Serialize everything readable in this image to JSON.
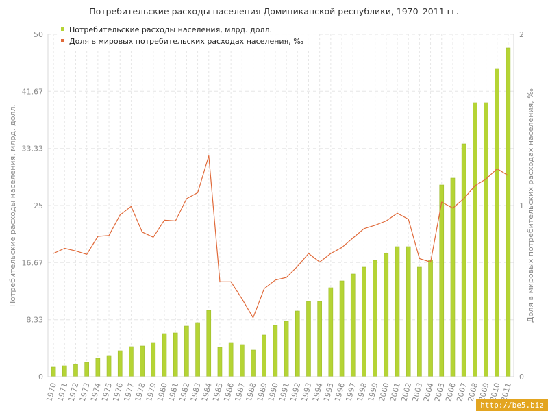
{
  "title": "Потребительские расходы населения Доминиканской республики, 1970–2011 гг.",
  "watermark": "http://be5.biz",
  "colors": {
    "bar": "#b5d435",
    "bar_border": "#9cbb2a",
    "line": "#e06a3a",
    "grid": "#e6e6e6",
    "axis": "#d8d8d8"
  },
  "chart_data": {
    "type": "bar",
    "categories": [
      "1970",
      "1971",
      "1972",
      "1973",
      "1974",
      "1975",
      "1976",
      "1977",
      "1978",
      "1979",
      "1980",
      "1981",
      "1982",
      "1983",
      "1984",
      "1985",
      "1986",
      "1987",
      "1988",
      "1989",
      "1990",
      "1991",
      "1992",
      "1993",
      "1994",
      "1995",
      "1996",
      "1997",
      "1998",
      "1999",
      "2000",
      "2001",
      "2002",
      "2003",
      "2004",
      "2005",
      "2006",
      "2007",
      "2008",
      "2009",
      "2010",
      "2011"
    ],
    "series": [
      {
        "name": "Потребительские расходы населения, млрд. долл.",
        "type": "bar",
        "axis": "left",
        "values": [
          1.4,
          1.6,
          1.8,
          2.1,
          2.7,
          3.1,
          3.8,
          4.4,
          4.5,
          5.0,
          6.3,
          6.4,
          7.4,
          7.9,
          9.7,
          4.3,
          5.0,
          4.7,
          3.9,
          6.1,
          7.5,
          8.1,
          9.6,
          11.0,
          11.0,
          13.0,
          14.0,
          15.0,
          16.0,
          17.0,
          18.0,
          19.0,
          19.0,
          16.0,
          17.0,
          28.0,
          29.0,
          34.0,
          40.0,
          40.0,
          45.0,
          48.0
        ]
      },
      {
        "name": "Доля в мировых потребительских расходах населения, ‰",
        "type": "line",
        "axis": "right",
        "values": [
          0.72,
          0.75,
          0.735,
          0.715,
          0.82,
          0.825,
          0.945,
          0.995,
          0.845,
          0.815,
          0.915,
          0.91,
          1.04,
          1.075,
          1.29,
          0.555,
          0.555,
          0.455,
          0.345,
          0.515,
          0.565,
          0.58,
          0.645,
          0.72,
          0.67,
          0.72,
          0.755,
          0.81,
          0.865,
          0.885,
          0.91,
          0.955,
          0.92,
          0.69,
          0.67,
          1.02,
          0.985,
          1.04,
          1.115,
          1.155,
          1.215,
          1.175
        ]
      }
    ],
    "y_left": {
      "label": "Потребительские расходы населения, млрд. долл.",
      "ticks": [
        "0",
        "8.33",
        "16.67",
        "25",
        "33.33",
        "41.67",
        "50"
      ],
      "ylim": [
        0,
        50
      ]
    },
    "y_right": {
      "label": "Доля в мировых потребительских расходах населения, ‰",
      "ticks": [
        "0",
        "1",
        "2"
      ],
      "ylim": [
        0,
        2
      ]
    },
    "grid": true,
    "legend_position": "top-left"
  }
}
